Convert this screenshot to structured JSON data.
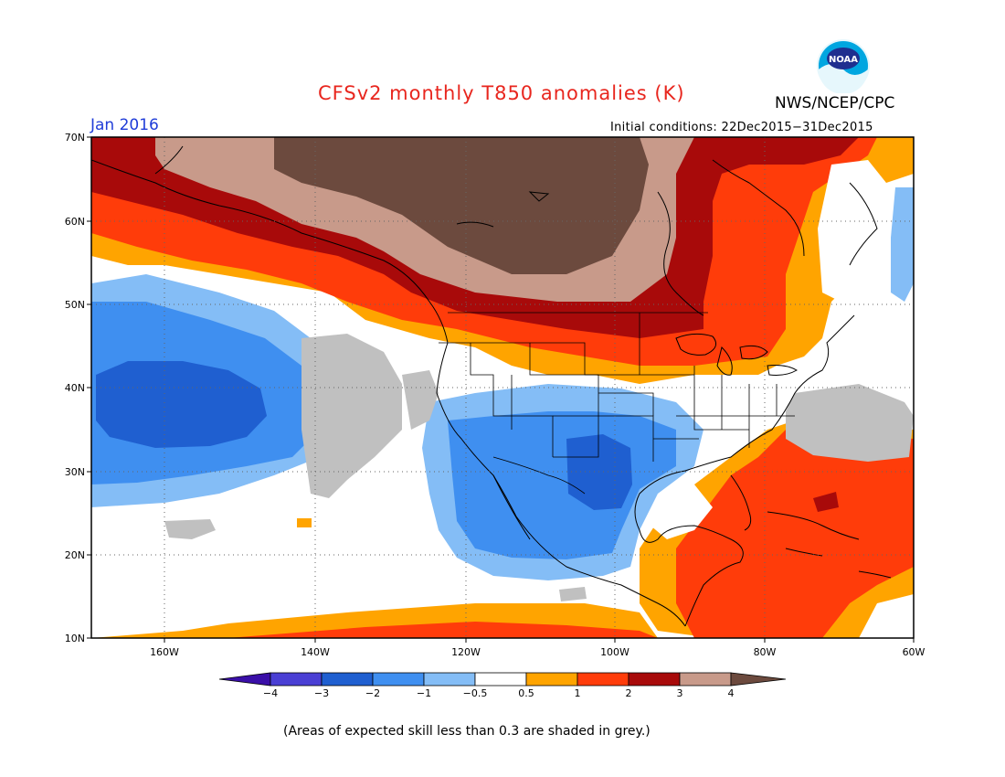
{
  "header": {
    "title": "CFSv2 monthly T850 anomalies (K)",
    "agency": "NWS/NCEP/CPC",
    "logo_text": "NOAA",
    "valid_month": "Jan 2016",
    "initial_conditions": "Initial conditions: 22Dec2015−31Dec2015"
  },
  "map": {
    "lat_labels": [
      "70N",
      "60N",
      "50N",
      "40N",
      "30N",
      "20N",
      "10N"
    ],
    "lon_labels": [
      "160W",
      "140W",
      "120W",
      "100W",
      "80W",
      "60W"
    ],
    "grid": true
  },
  "colorbar": {
    "labels": [
      "−4",
      "−3",
      "−2",
      "−1",
      "−0.5",
      "0.5",
      "1",
      "2",
      "3",
      "4"
    ],
    "colors": [
      "#3a0fa8",
      "#4a3fd4",
      "#1f5fd0",
      "#3f8ff0",
      "#84bdf6",
      "#ffffff",
      "#ffa400",
      "#ff3c0a",
      "#a80a0a",
      "#c89a8a",
      "#6c4a3e"
    ]
  },
  "footnote": "(Areas of expected skill less than 0.3 are shaded in grey.)"
}
